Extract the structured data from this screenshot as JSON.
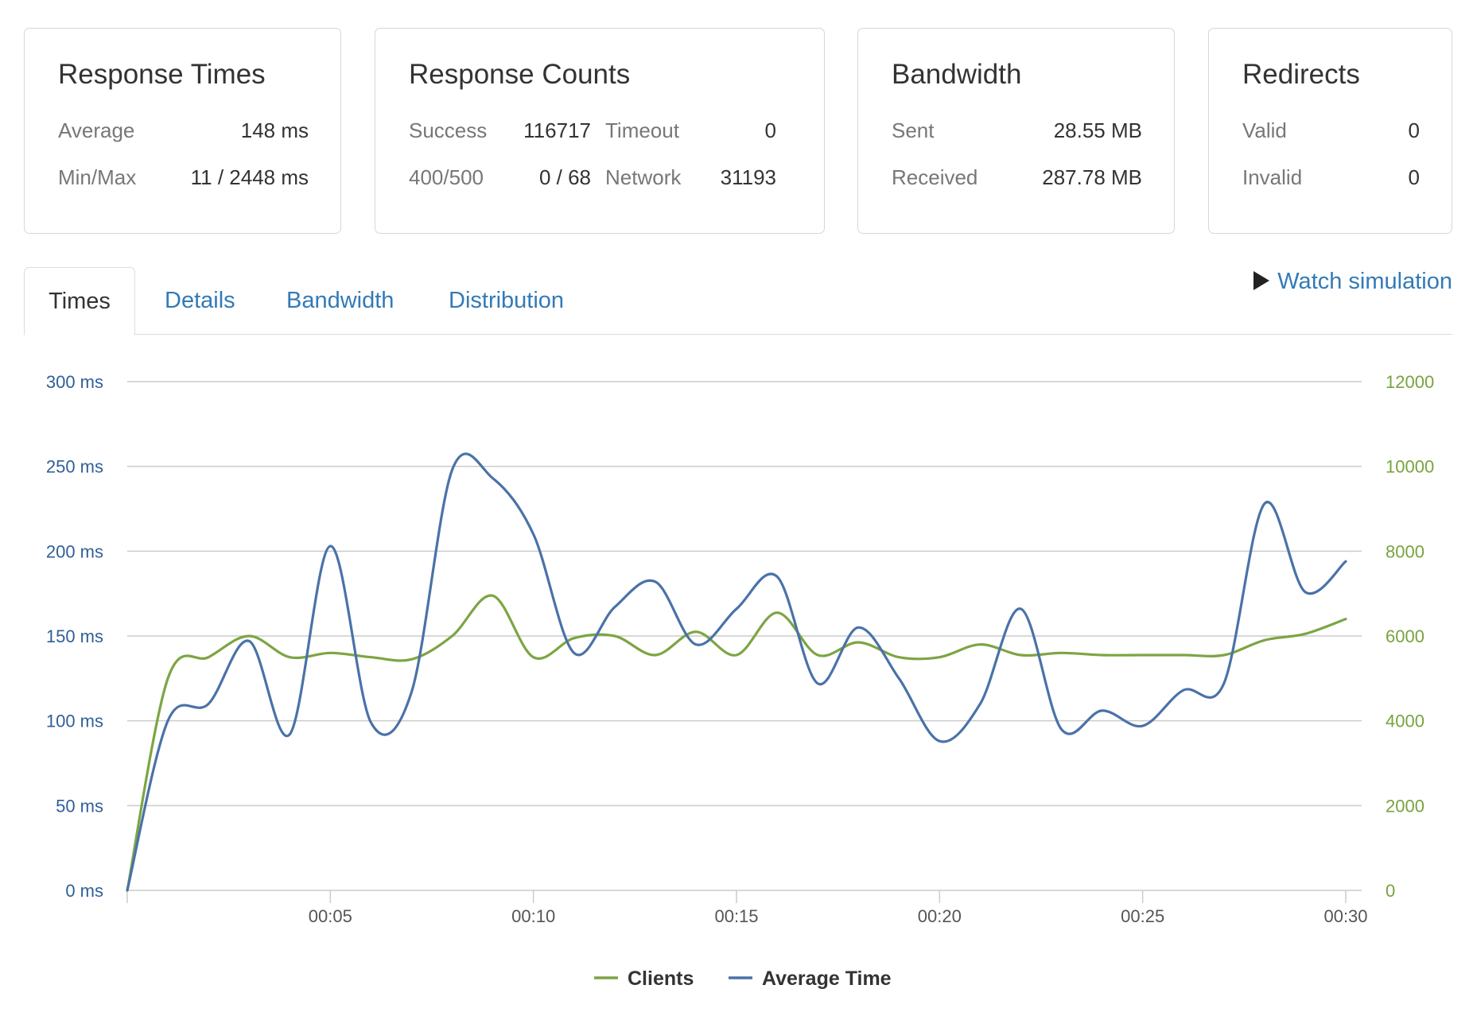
{
  "cards": {
    "response_times": {
      "title": "Response Times",
      "average_label": "Average",
      "average_value": "148 ms",
      "minmax_label": "Min/Max",
      "minmax_value": "11 / 2448 ms"
    },
    "response_counts": {
      "title": "Response Counts",
      "success_label": "Success",
      "success_value": "116717",
      "timeout_label": "Timeout",
      "timeout_value": "0",
      "err_label": "400/500",
      "err_value": "0 / 68",
      "network_label": "Network",
      "network_value": "31193"
    },
    "bandwidth": {
      "title": "Bandwidth",
      "sent_label": "Sent",
      "sent_value": "28.55 MB",
      "received_label": "Received",
      "received_value": "287.78 MB"
    },
    "redirects": {
      "title": "Redirects",
      "valid_label": "Valid",
      "valid_value": "0",
      "invalid_label": "Invalid",
      "invalid_value": "0"
    }
  },
  "tabs": [
    {
      "label": "Times",
      "active": true
    },
    {
      "label": "Details",
      "active": false
    },
    {
      "label": "Bandwidth",
      "active": false
    },
    {
      "label": "Distribution",
      "active": false
    }
  ],
  "watch_label": "Watch simulation",
  "colors": {
    "clients": "#7ca543",
    "average_time": "#4a72a8",
    "grid": "#cccccc",
    "link": "#337ab7"
  },
  "chart_data": {
    "type": "line",
    "x": [
      0,
      1,
      2,
      3,
      4,
      5,
      6,
      7,
      8,
      9,
      10,
      11,
      12,
      13,
      14,
      15,
      16,
      17,
      18,
      19,
      20,
      21,
      22,
      23,
      24,
      25,
      26,
      27,
      28,
      29,
      30
    ],
    "xticks": [
      "00:05",
      "00:10",
      "00:15",
      "00:20",
      "00:25",
      "00:30"
    ],
    "xtick_values": [
      5,
      10,
      15,
      20,
      25,
      30
    ],
    "y_left": {
      "ticks": [
        "0 ms",
        "50 ms",
        "100 ms",
        "150 ms",
        "200 ms",
        "250 ms",
        "300 ms"
      ],
      "range": [
        0,
        300
      ]
    },
    "y_right": {
      "ticks": [
        "0",
        "2000",
        "4000",
        "6000",
        "8000",
        "10000",
        "12000"
      ],
      "range": [
        0,
        12000
      ]
    },
    "grid": true,
    "legend_position": "bottom-center",
    "series": [
      {
        "name": "Clients",
        "axis": "right",
        "values": [
          0,
          5000,
          5500,
          6000,
          5500,
          5600,
          5500,
          5450,
          6000,
          6950,
          5500,
          5950,
          6000,
          5550,
          6100,
          5550,
          6550,
          5550,
          5850,
          5500,
          5500,
          5800,
          5550,
          5600,
          5550,
          5550,
          5550,
          5550,
          5900,
          6050,
          6400
        ]
      },
      {
        "name": "Average Time",
        "axis": "left",
        "values": [
          0,
          100,
          110,
          147,
          92,
          203,
          99,
          117,
          248,
          243,
          210,
          140,
          167,
          182,
          145,
          166,
          185,
          122,
          155,
          125,
          88,
          110,
          166,
          95,
          106,
          97,
          118,
          122,
          228,
          176,
          194
        ]
      }
    ]
  }
}
